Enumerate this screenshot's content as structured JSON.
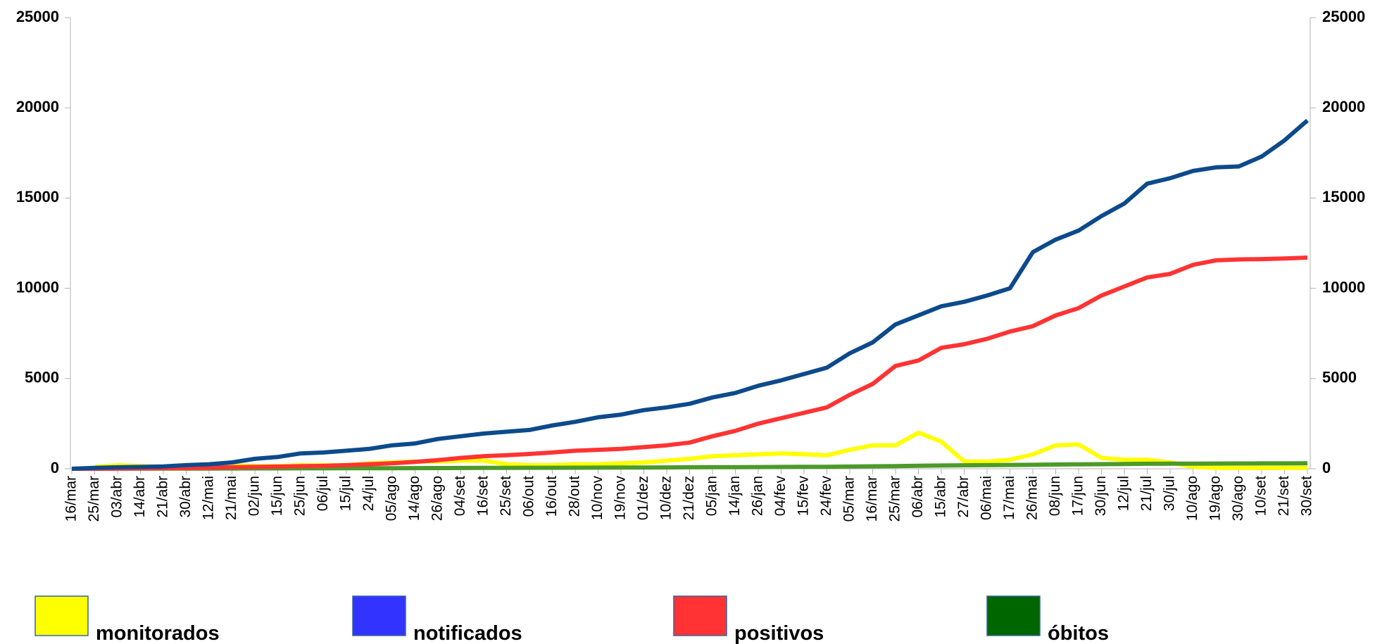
{
  "chart_data": {
    "type": "line",
    "categories": [
      "16/mar",
      "25/mar",
      "03/abr",
      "14/abr",
      "21/abr",
      "30/abr",
      "12/mai",
      "21/mai",
      "02/jun",
      "15/jun",
      "25/jun",
      "06/jul",
      "15/jul",
      "24/jul",
      "05/ago",
      "14/ago",
      "26/ago",
      "04/set",
      "16/set",
      "25/set",
      "06/out",
      "16/out",
      "28/out",
      "10/nov",
      "19/nov",
      "01/dez",
      "10/dez",
      "21/dez",
      "05/jan",
      "14/jan",
      "26/jan",
      "04/fev",
      "15/fev",
      "24/fev",
      "05/mar",
      "16/mar",
      "25/mar",
      "06/abr",
      "15/abr",
      "27/abr",
      "06/mai",
      "17/mai",
      "26/mai",
      "08/jun",
      "17/jun",
      "30/jun",
      "12/jul",
      "21/jul",
      "30/jul",
      "10/ago",
      "19/ago",
      "30/ago",
      "10/set",
      "21/set",
      "30/set"
    ],
    "series": [
      {
        "name": "monitorados",
        "color": "#ffff00",
        "legend_color": "#ffff00",
        "values": [
          null,
          100,
          200,
          150,
          100,
          150,
          150,
          200,
          150,
          150,
          200,
          200,
          200,
          300,
          350,
          400,
          400,
          450,
          450,
          250,
          200,
          200,
          250,
          250,
          300,
          350,
          450,
          550,
          700,
          750,
          800,
          850,
          800,
          750,
          1050,
          1300,
          1300,
          2000,
          1500,
          400,
          400,
          500,
          800,
          1300,
          1350,
          600,
          500,
          500,
          350,
          100,
          50,
          50,
          50,
          50,
          50
        ]
      },
      {
        "name": "notificados",
        "color": "#0d4a8c",
        "legend_color": "#3333ff",
        "values": [
          0,
          50,
          80,
          100,
          130,
          200,
          250,
          350,
          550,
          650,
          850,
          900,
          1000,
          1100,
          1300,
          1400,
          1650,
          1800,
          1950,
          2050,
          2150,
          2400,
          2600,
          2850,
          3000,
          3250,
          3400,
          3600,
          3950,
          4200,
          4600,
          4900,
          5250,
          5600,
          6400,
          7000,
          8000,
          8500,
          9000,
          9250,
          9600,
          10000,
          12000,
          12700,
          13200,
          14000,
          14700,
          15800,
          16100,
          16500,
          16700,
          16750,
          17300,
          18200,
          19300
        ]
      },
      {
        "name": "positivos",
        "color": "#ff3333",
        "legend_color": "#ff3333",
        "values": [
          0,
          0,
          10,
          20,
          30,
          40,
          60,
          80,
          100,
          120,
          140,
          160,
          200,
          250,
          300,
          380,
          480,
          600,
          700,
          750,
          820,
          900,
          1000,
          1050,
          1100,
          1200,
          1300,
          1450,
          1800,
          2100,
          2500,
          2800,
          3100,
          3400,
          4100,
          4700,
          5700,
          6000,
          6700,
          6900,
          7200,
          7600,
          7900,
          8500,
          8900,
          9600,
          10100,
          10600,
          10800,
          11300,
          11550,
          11600,
          11620,
          11650,
          11700
        ]
      },
      {
        "name": "óbitos",
        "color": "#4c9a2a",
        "legend_color": "#006600",
        "values": [
          0,
          0,
          2,
          5,
          8,
          10,
          12,
          15,
          18,
          20,
          22,
          25,
          28,
          30,
          33,
          36,
          40,
          43,
          46,
          50,
          53,
          56,
          60,
          63,
          66,
          70,
          75,
          80,
          85,
          90,
          95,
          100,
          105,
          110,
          120,
          135,
          150,
          165,
          180,
          190,
          200,
          210,
          220,
          235,
          245,
          255,
          265,
          275,
          280,
          285,
          290,
          293,
          296,
          298,
          300
        ]
      }
    ],
    "ylim": [
      0,
      25000
    ],
    "yticks": [
      0,
      5000,
      10000,
      15000,
      20000,
      25000
    ],
    "y2lim": [
      0,
      25000
    ],
    "y2ticks": [
      0,
      5000,
      10000,
      15000,
      20000,
      25000
    ]
  }
}
